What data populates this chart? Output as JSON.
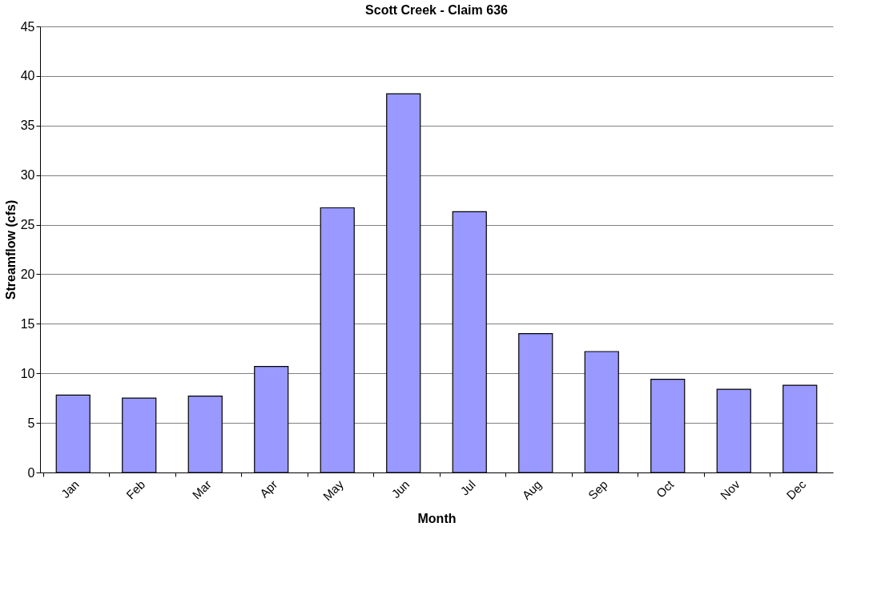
{
  "chart_data": {
    "type": "bar",
    "title": "Scott Creek - Claim 636",
    "xlabel": "Month",
    "ylabel": "Streamflow (cfs)",
    "categories": [
      "Jan",
      "Feb",
      "Mar",
      "Apr",
      "May",
      "Jun",
      "Jul",
      "Aug",
      "Sep",
      "Oct",
      "Nov",
      "Dec"
    ],
    "values": [
      7.8,
      7.5,
      7.7,
      10.7,
      26.7,
      38.2,
      26.3,
      14.0,
      12.2,
      9.4,
      8.4,
      8.8
    ],
    "color": "#9999ff",
    "ylim": [
      0,
      45
    ],
    "yticks": [
      0,
      5,
      10,
      15,
      20,
      25,
      30,
      35,
      40,
      45
    ],
    "grid": "y"
  }
}
